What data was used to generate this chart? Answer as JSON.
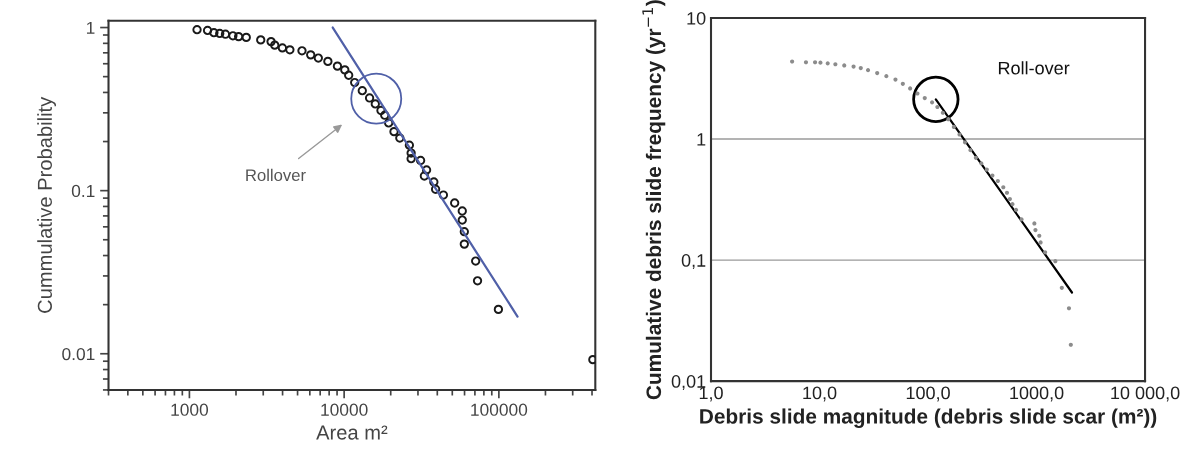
{
  "chart_data": [
    {
      "type": "scatter",
      "xlabel": "Area m²",
      "ylabel": "Cummulative Probability",
      "log": "xy",
      "xlim": [
        300,
        420000
      ],
      "ylim": [
        0.006,
        1.1
      ],
      "xticks": [
        1000,
        10000,
        100000
      ],
      "yticks": [
        1,
        0.1,
        0.01
      ],
      "grid": false,
      "annotations": [
        "Rollover"
      ],
      "series": [
        {
          "marker": "circle",
          "color": "#1a1a1a",
          "x": [
            1120,
            1310,
            1440,
            1570,
            1710,
            1910,
            2080,
            2330,
            2890,
            3370,
            3560,
            3990,
            4460,
            5340,
            6080,
            6810,
            7850,
            9050,
            10100,
            10700,
            11700,
            13100,
            14600,
            15900,
            17300,
            18300,
            19400,
            21000,
            22900,
            26400,
            27100,
            27100,
            31200,
            34100,
            33000,
            38000,
            39000,
            43800,
            51800,
            58000,
            58000,
            59800,
            59800,
            70800,
            72800,
            99300,
            405000
          ],
          "values": [
            0.97,
            0.96,
            0.93,
            0.92,
            0.91,
            0.89,
            0.88,
            0.87,
            0.84,
            0.82,
            0.78,
            0.75,
            0.73,
            0.72,
            0.68,
            0.65,
            0.62,
            0.58,
            0.55,
            0.51,
            0.46,
            0.41,
            0.37,
            0.34,
            0.31,
            0.29,
            0.26,
            0.23,
            0.21,
            0.19,
            0.17,
            0.157,
            0.153,
            0.134,
            0.123,
            0.113,
            0.102,
            0.094,
            0.084,
            0.075,
            0.066,
            0.056,
            0.047,
            0.037,
            0.028,
            0.0187,
            0.0092
          ]
        },
        {
          "type": "line",
          "color": "#5060a8",
          "x": [
            8440,
            132000
          ],
          "values": [
            1.0,
            0.0169
          ]
        }
      ]
    },
    {
      "type": "scatter",
      "xlabel": "Debris slide magnitude (debris slide scar (m²))",
      "ylabel": "Cumulative debris slide frequency (yr$^{−1}$)",
      "log": "xy",
      "xlim": [
        1,
        10000
      ],
      "ylim": [
        0.01,
        10
      ],
      "grid": "y",
      "xticks": [
        {
          "value": 1,
          "label": "1,0"
        },
        {
          "value": 10,
          "label": "10,0"
        },
        {
          "value": 100,
          "label": "100,0"
        },
        {
          "value": 1000,
          "label": "1000,0"
        },
        {
          "value": 10000,
          "label": "10 000,0"
        }
      ],
      "yticks": [
        {
          "value": 0.01,
          "label": "0,01"
        },
        {
          "value": 0.1,
          "label": "0,1"
        },
        1,
        10
      ],
      "annotations": [
        "Roll-over"
      ],
      "series": [
        {
          "marker": "circle",
          "color": "#8c8c8c",
          "x": [
            5.59,
            7.5,
            9.1,
            10.2,
            11.9,
            14.0,
            16.9,
            20.6,
            24.0,
            28.0,
            34.0,
            41.3,
            50.1,
            58.6,
            68.4,
            79.9,
            93.3,
            109,
            122,
            137,
            154,
            173,
            195,
            219,
            246,
            276,
            310,
            348,
            392,
            440,
            494,
            534,
            568,
            600,
            648,
            728,
            955,
            977,
            1060,
            1090,
            1200,
            1490,
            1710,
            1990,
            2070
          ],
          "values": [
            4.37,
            4.31,
            4.31,
            4.28,
            4.22,
            4.15,
            4.06,
            3.97,
            3.86,
            3.71,
            3.51,
            3.31,
            3.1,
            2.86,
            2.62,
            2.38,
            2.18,
            2.01,
            1.84,
            1.65,
            1.46,
            1.26,
            1.09,
            0.94,
            0.81,
            0.7,
            0.63,
            0.56,
            0.5,
            0.45,
            0.4,
            0.36,
            0.32,
            0.29,
            0.26,
            0.217,
            0.201,
            0.177,
            0.159,
            0.14,
            0.116,
            0.098,
            0.059,
            0.04,
            0.02
          ]
        },
        {
          "type": "line",
          "color": "#000000",
          "x": [
            118,
            2120
          ],
          "values": [
            2.13,
            0.054
          ]
        }
      ]
    }
  ]
}
